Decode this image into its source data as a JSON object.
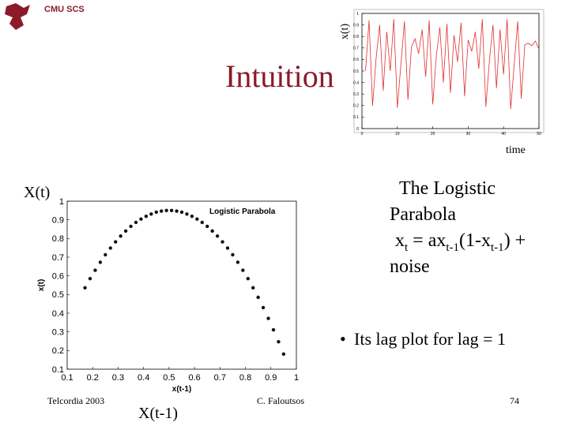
{
  "header": {
    "org": "CMU SCS"
  },
  "title": "Intuition",
  "labels": {
    "top_y": "x(t)",
    "top_x": "time",
    "lag_y": "X(t)",
    "lag_x": "X(t-1)"
  },
  "text_block": {
    "line1": "The Logistic",
    "line2": "Parabola",
    "formula": [
      {
        "text": "x"
      },
      {
        "sub": "t"
      },
      {
        "text": " = ax"
      },
      {
        "sub": "t-1"
      },
      {
        "text": "(1-x"
      },
      {
        "sub": "t-1"
      },
      {
        "text": ") +"
      }
    ],
    "line4": "noise"
  },
  "bullet": "Its lag plot for lag = 1",
  "footer": {
    "left": "Telcordia 2003",
    "center": "C. Faloutsos",
    "page": "74"
  },
  "chart_data": [
    {
      "type": "line",
      "color": "#e03030",
      "x": [
        1,
        2,
        3,
        4,
        5,
        6,
        7,
        8,
        9,
        10,
        11,
        12,
        13,
        14,
        15,
        16,
        17,
        18,
        19,
        20,
        21,
        22,
        23,
        24,
        25,
        26,
        27,
        28,
        29,
        30,
        31,
        32,
        33,
        34,
        35,
        36,
        37,
        38,
        39,
        40,
        41,
        42,
        43,
        44,
        45,
        46,
        47,
        48,
        49,
        50
      ],
      "values": [
        0.5,
        0.94,
        0.2,
        0.61,
        0.9,
        0.33,
        0.84,
        0.5,
        0.95,
        0.18,
        0.56,
        0.93,
        0.25,
        0.71,
        0.78,
        0.65,
        0.86,
        0.45,
        0.94,
        0.21,
        0.63,
        0.88,
        0.4,
        0.91,
        0.31,
        0.81,
        0.58,
        0.92,
        0.28,
        0.77,
        0.67,
        0.84,
        0.52,
        0.95,
        0.19,
        0.59,
        0.9,
        0.35,
        0.86,
        0.47,
        0.95,
        0.17,
        0.55,
        0.93,
        0.26,
        0.73,
        0.74,
        0.72,
        0.76,
        0.69
      ],
      "xlim": [
        0,
        50
      ],
      "xticks": [
        0,
        10,
        20,
        30,
        40,
        50
      ],
      "ylim": [
        0,
        1
      ],
      "yticks": [
        0,
        0.1,
        0.2,
        0.3,
        0.4,
        0.5,
        0.6,
        0.7,
        0.8,
        0.9,
        1
      ]
    },
    {
      "type": "scatter",
      "title": "Logistic Parabola",
      "xlabel": "x(t-1)",
      "ylabel": "x(t)",
      "color": "#111111",
      "x": [
        0.17,
        0.19,
        0.21,
        0.23,
        0.25,
        0.27,
        0.29,
        0.31,
        0.33,
        0.35,
        0.37,
        0.39,
        0.41,
        0.43,
        0.45,
        0.47,
        0.49,
        0.51,
        0.53,
        0.55,
        0.57,
        0.59,
        0.61,
        0.63,
        0.65,
        0.67,
        0.69,
        0.71,
        0.73,
        0.75,
        0.77,
        0.79,
        0.81,
        0.83,
        0.85,
        0.87,
        0.89,
        0.91,
        0.93,
        0.95
      ],
      "values": [
        0.536,
        0.585,
        0.63,
        0.673,
        0.713,
        0.749,
        0.782,
        0.813,
        0.84,
        0.865,
        0.886,
        0.904,
        0.919,
        0.931,
        0.941,
        0.947,
        0.95,
        0.95,
        0.947,
        0.941,
        0.931,
        0.919,
        0.904,
        0.886,
        0.865,
        0.84,
        0.813,
        0.782,
        0.749,
        0.713,
        0.673,
        0.63,
        0.585,
        0.536,
        0.485,
        0.43,
        0.372,
        0.311,
        0.247,
        0.181
      ],
      "xlim": [
        0.1,
        1
      ],
      "xticks": [
        0.1,
        0.2,
        0.3,
        0.4,
        0.5,
        0.6,
        0.7,
        0.8,
        0.9,
        1
      ],
      "ylim": [
        0.1,
        1
      ],
      "yticks": [
        0.1,
        0.2,
        0.3,
        0.4,
        0.5,
        0.6,
        0.7,
        0.8,
        0.9,
        1
      ]
    }
  ]
}
